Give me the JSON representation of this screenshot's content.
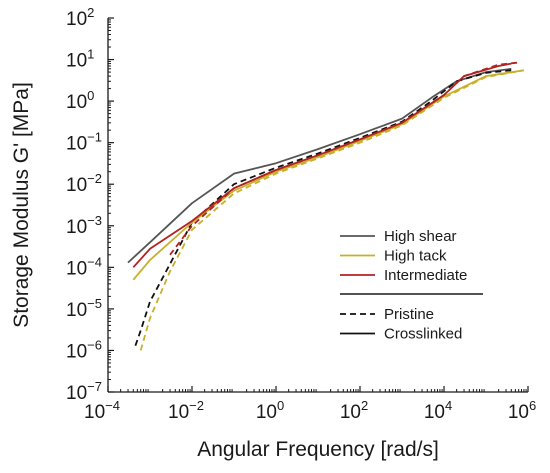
{
  "chart_data": {
    "type": "line",
    "title": "",
    "xlabel": "Angular Frequency [rad/s]",
    "ylabel": "Storage Modulus G' [MPa]",
    "xscale": "log",
    "yscale": "log",
    "xlim": [
      0.0001,
      1000000
    ],
    "ylim": [
      1e-07,
      100
    ],
    "x_ticks": [
      {
        "base": "10",
        "exp": "−4",
        "value": 0.0001
      },
      {
        "base": "10",
        "exp": "−2",
        "value": 0.01
      },
      {
        "base": "10",
        "exp": "0",
        "value": 1
      },
      {
        "base": "10",
        "exp": "2",
        "value": 100
      },
      {
        "base": "10",
        "exp": "4",
        "value": 10000
      },
      {
        "base": "10",
        "exp": "6",
        "value": 1000000
      }
    ],
    "y_ticks": [
      {
        "base": "10",
        "exp": "−7",
        "value": 1e-07
      },
      {
        "base": "10",
        "exp": "−6",
        "value": 1e-06
      },
      {
        "base": "10",
        "exp": "−5",
        "value": 1e-05
      },
      {
        "base": "10",
        "exp": "−4",
        "value": 0.0001
      },
      {
        "base": "10",
        "exp": "−3",
        "value": 0.001
      },
      {
        "base": "10",
        "exp": "−2",
        "value": 0.01
      },
      {
        "base": "10",
        "exp": "−1",
        "value": 0.1
      },
      {
        "base": "10",
        "exp": "0",
        "value": 1
      },
      {
        "base": "10",
        "exp": "1",
        "value": 10
      },
      {
        "base": "10",
        "exp": "2",
        "value": 100
      }
    ],
    "grid": false,
    "legend": {
      "position": "center-right",
      "color_entries": [
        {
          "label": "High shear",
          "color": "#555555"
        },
        {
          "label": "High tack",
          "color": "#c9b02a"
        },
        {
          "label": "Intermediate",
          "color": "#b22222"
        }
      ],
      "style_entries": [
        {
          "label": "Pristine",
          "dash": "dashed"
        },
        {
          "label": "Crosslinked",
          "dash": "solid"
        }
      ]
    },
    "series": [
      {
        "key": "high-shear-crosslinked",
        "color": "#555555",
        "dash": "solid",
        "points": [
          [
            0.0003,
            0.00013
          ],
          [
            0.001,
            0.0004
          ],
          [
            0.01,
            0.0035
          ],
          [
            0.1,
            0.018
          ],
          [
            1,
            0.032
          ],
          [
            10,
            0.07
          ],
          [
            100,
            0.16
          ],
          [
            1000,
            0.38
          ],
          [
            5000,
            1.2
          ],
          [
            20000,
            3.0
          ],
          [
            100000,
            5.0
          ],
          [
            400000,
            6.0
          ]
        ]
      },
      {
        "key": "high-shear-pristine",
        "color": "#111111",
        "dash": "dashed",
        "points": [
          [
            0.00045,
            1.3e-06
          ],
          [
            0.0006,
            3e-06
          ],
          [
            0.001,
            1.5e-05
          ],
          [
            0.003,
            0.00012
          ],
          [
            0.01,
            0.0012
          ],
          [
            0.1,
            0.01
          ],
          [
            1,
            0.025
          ],
          [
            10,
            0.055
          ],
          [
            100,
            0.13
          ],
          [
            1000,
            0.32
          ],
          [
            5000,
            1.0
          ],
          [
            20000,
            3.0
          ],
          [
            100000,
            4.8
          ],
          [
            400000,
            5.5
          ]
        ]
      },
      {
        "key": "high-tack-crosslinked",
        "color": "#c9b02a",
        "dash": "solid",
        "points": [
          [
            0.0004,
            5e-05
          ],
          [
            0.001,
            0.00015
          ],
          [
            0.01,
            0.0012
          ],
          [
            0.1,
            0.007
          ],
          [
            1,
            0.02
          ],
          [
            10,
            0.045
          ],
          [
            100,
            0.11
          ],
          [
            1000,
            0.28
          ],
          [
            10000,
            1.3
          ],
          [
            100000,
            4.0
          ],
          [
            800000,
            5.5
          ]
        ]
      },
      {
        "key": "high-tack-pristine",
        "color": "#c9b02a",
        "dash": "dashed",
        "points": [
          [
            0.0006,
            1e-06
          ],
          [
            0.001,
            6e-06
          ],
          [
            0.003,
            8e-05
          ],
          [
            0.01,
            0.0008
          ],
          [
            0.1,
            0.006
          ],
          [
            1,
            0.018
          ],
          [
            10,
            0.042
          ],
          [
            100,
            0.1
          ],
          [
            1000,
            0.26
          ],
          [
            10000,
            1.2
          ],
          [
            100000,
            3.8
          ],
          [
            800000,
            5.5
          ]
        ]
      },
      {
        "key": "intermediate-crosslinked",
        "color": "#b22222",
        "dash": "solid",
        "points": [
          [
            0.0004,
            0.0001
          ],
          [
            0.001,
            0.00028
          ],
          [
            0.01,
            0.0013
          ],
          [
            0.1,
            0.008
          ],
          [
            1,
            0.022
          ],
          [
            10,
            0.05
          ],
          [
            100,
            0.12
          ],
          [
            1000,
            0.3
          ],
          [
            10000,
            1.4
          ],
          [
            30000,
            4.0
          ],
          [
            200000,
            7.0
          ],
          [
            400000,
            8.0
          ]
        ]
      },
      {
        "key": "intermediate-pristine",
        "color": "#b22222",
        "dash": "dashed",
        "points": [
          [
            0.003,
            0.0002
          ],
          [
            0.01,
            0.001
          ],
          [
            0.1,
            0.008
          ],
          [
            1,
            0.022
          ],
          [
            10,
            0.05
          ],
          [
            100,
            0.12
          ],
          [
            1000,
            0.3
          ],
          [
            10000,
            1.4
          ],
          [
            30000,
            4.0
          ],
          [
            200000,
            7.5
          ],
          [
            600000,
            8.5
          ]
        ]
      }
    ]
  }
}
